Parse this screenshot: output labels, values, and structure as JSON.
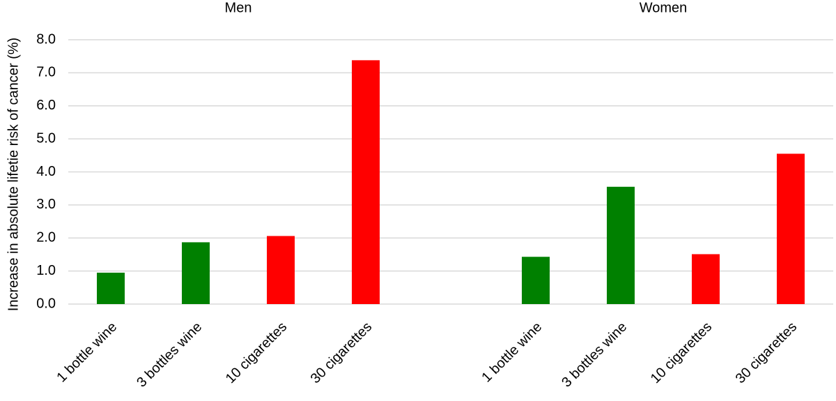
{
  "chart_data": {
    "type": "bar",
    "y_label": "Increase in absolute lifetie risk of cancer (%)",
    "ylim": [
      0,
      8
    ],
    "yticks": [
      {
        "value": 0,
        "label": "0.0"
      },
      {
        "value": 1,
        "label": "1.0"
      },
      {
        "value": 2,
        "label": "2.0"
      },
      {
        "value": 3,
        "label": "3.0"
      },
      {
        "value": 4,
        "label": "4.0"
      },
      {
        "value": 5,
        "label": "5.0"
      },
      {
        "value": 6,
        "label": "6.0"
      },
      {
        "value": 7,
        "label": "7.0"
      },
      {
        "value": 8,
        "label": "8.0"
      }
    ],
    "grid": true,
    "groups": [
      {
        "label": "Men",
        "categories": [
          "1 bottle wine",
          "3 bottles wine",
          "10 cigarettes",
          "30 cigarettes"
        ],
        "values": [
          0.95,
          1.87,
          2.06,
          7.38
        ],
        "colors": [
          "#008000",
          "#008000",
          "#ff0000",
          "#ff0000"
        ]
      },
      {
        "label": "Women",
        "categories": [
          "1 bottle wine",
          "3 bottles wine",
          "10 cigarettes",
          "30 cigarettes"
        ],
        "values": [
          1.43,
          3.55,
          1.51,
          4.55
        ],
        "colors": [
          "#008000",
          "#008000",
          "#ff0000",
          "#ff0000"
        ]
      }
    ]
  }
}
